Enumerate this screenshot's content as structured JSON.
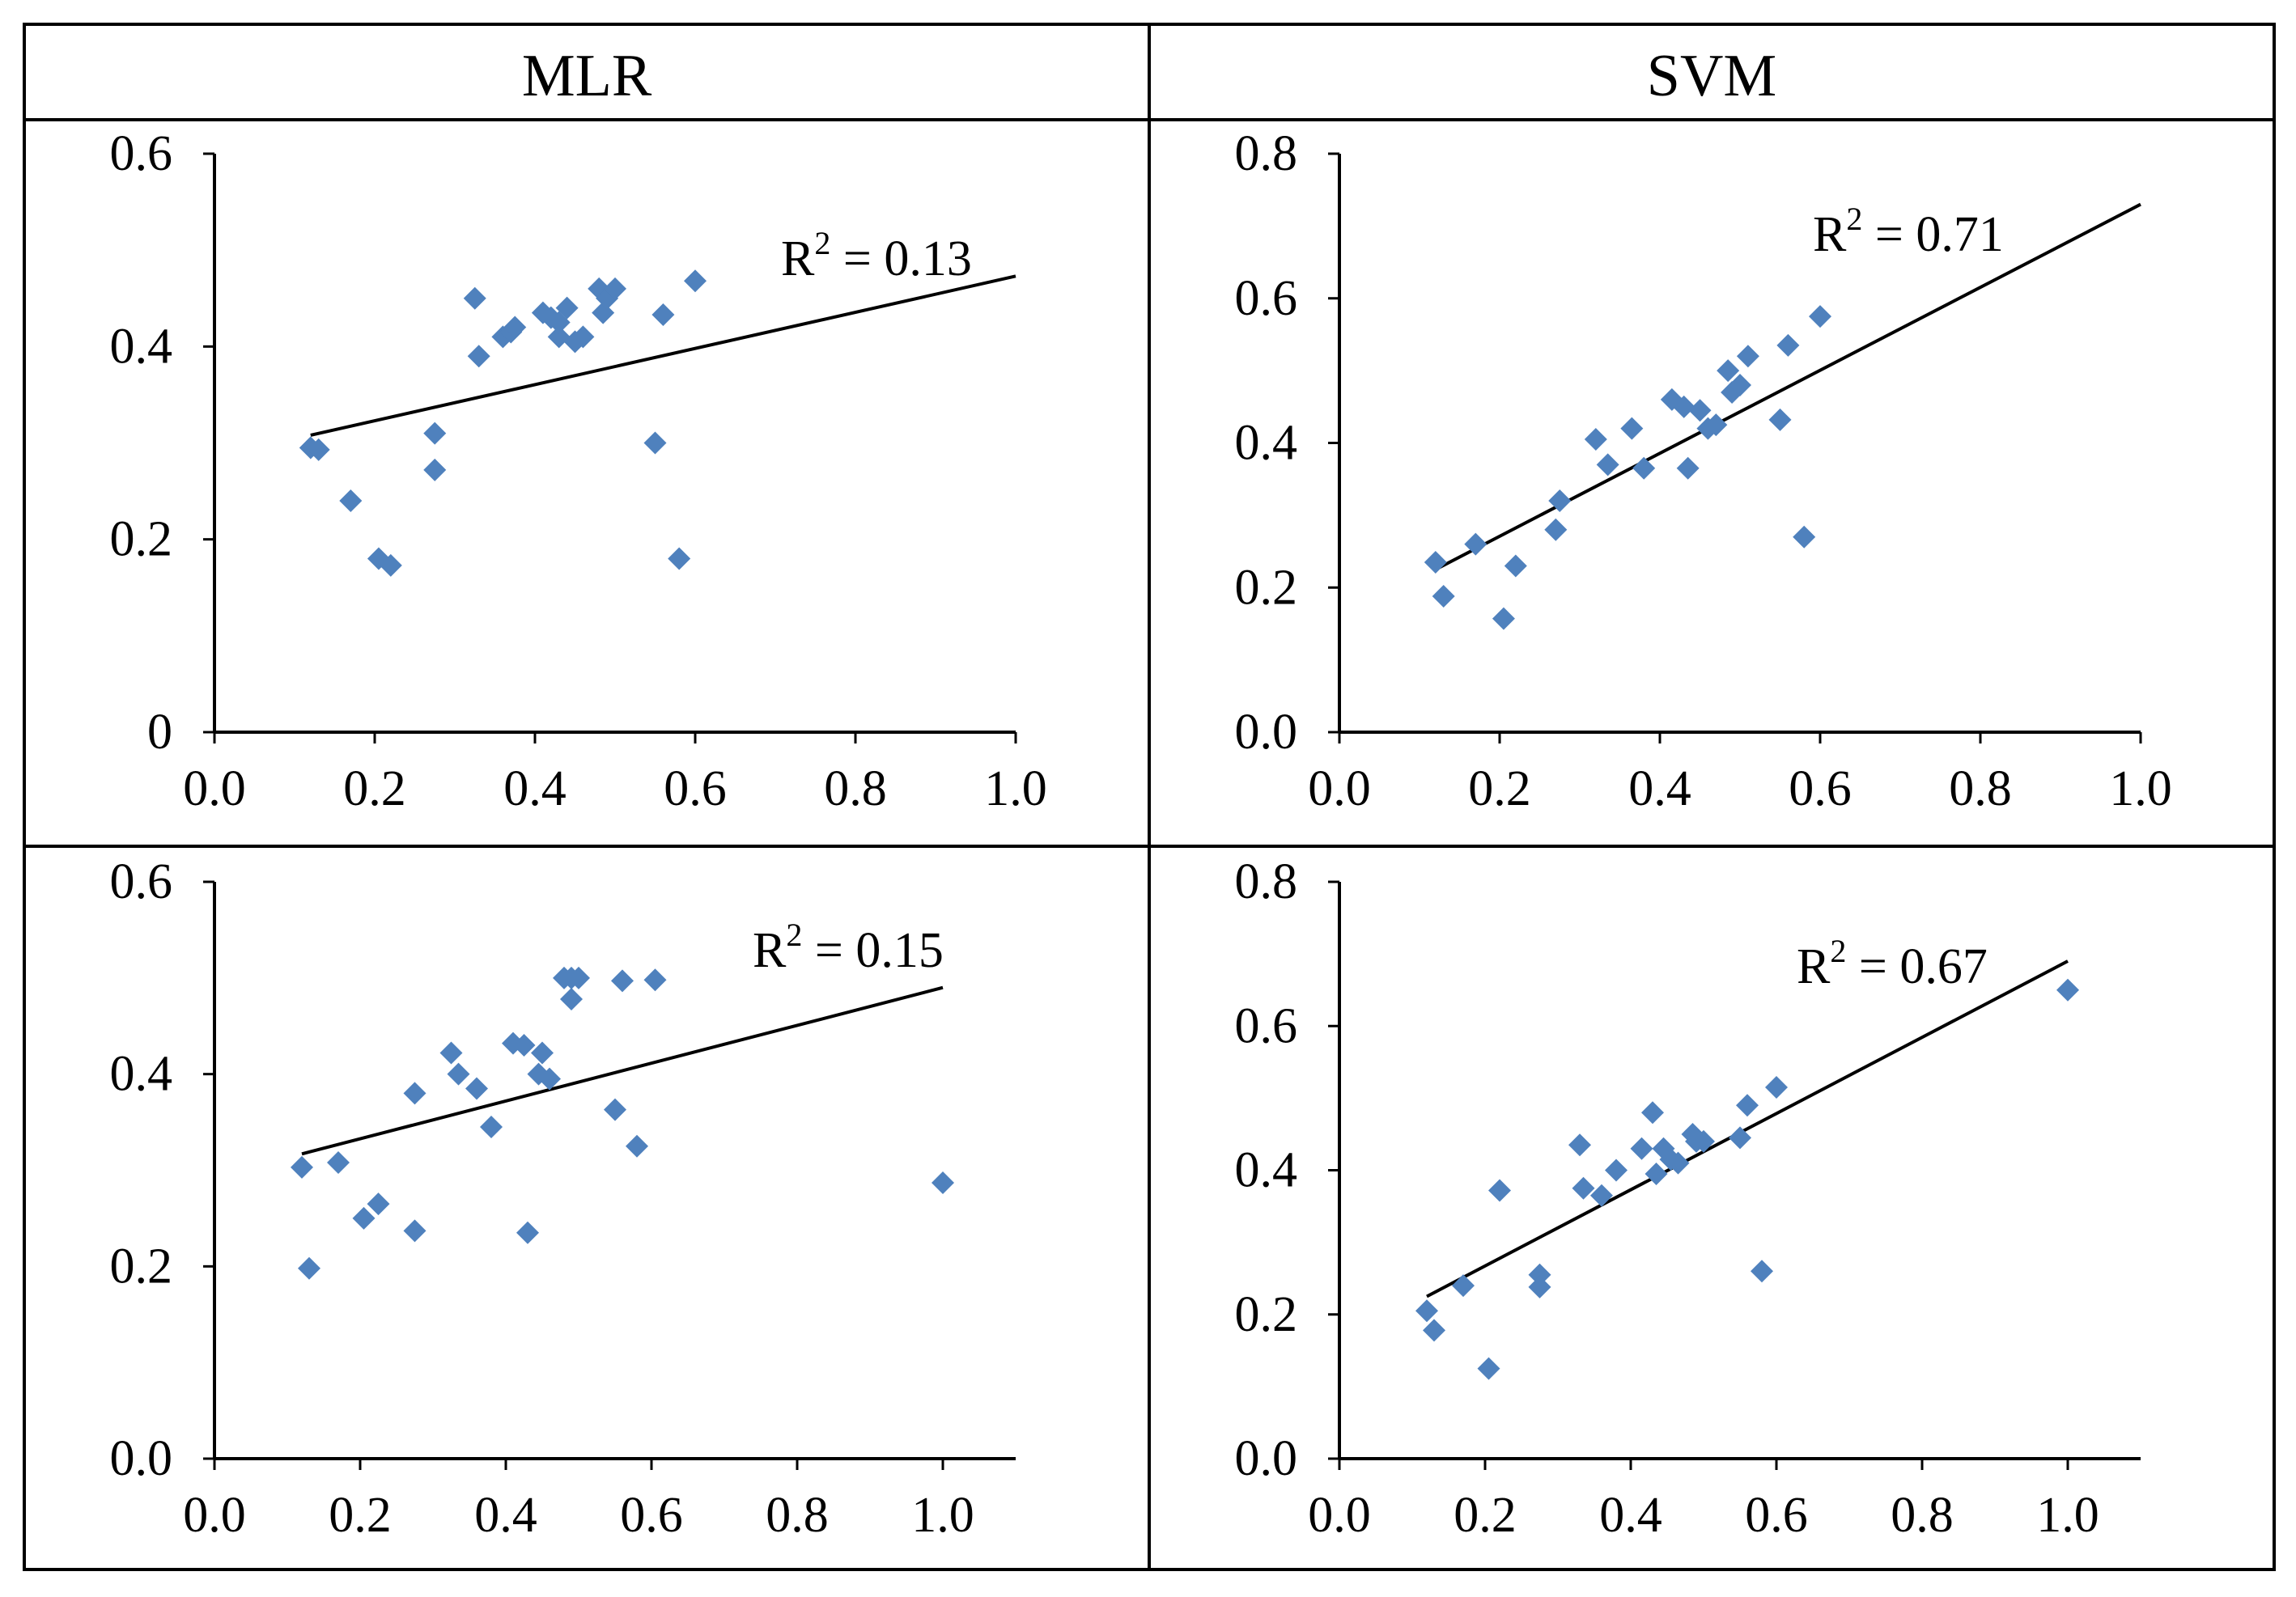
{
  "headers": {
    "left": "MLR",
    "right": "SVM"
  },
  "colors": {
    "marker": "#4f81bd",
    "line": "#000000",
    "frame": "#000000"
  },
  "chart_data": [
    {
      "type": "scatter",
      "panel": "top-left",
      "method": "MLR",
      "xlim": [
        0,
        1.0
      ],
      "ylim": [
        0,
        0.6
      ],
      "xticks": [
        "0.0",
        "0.2",
        "0.4",
        "0.6",
        "0.8",
        "1.0"
      ],
      "yticks": [
        "0",
        "0.2",
        "0.4",
        "0.6"
      ],
      "annotation": {
        "prefix": "R",
        "sup": "2",
        "text": " = 0.13"
      },
      "fit": {
        "x": [
          0.12,
          1.0
        ],
        "y": [
          0.308,
          0.473
        ]
      },
      "x": [
        0.12,
        0.13,
        0.17,
        0.205,
        0.22,
        0.275,
        0.275,
        0.325,
        0.33,
        0.36,
        0.37,
        0.375,
        0.41,
        0.42,
        0.43,
        0.43,
        0.44,
        0.45,
        0.46,
        0.48,
        0.485,
        0.49,
        0.5,
        0.55,
        0.56,
        0.58,
        0.6
      ],
      "y": [
        0.295,
        0.293,
        0.24,
        0.18,
        0.173,
        0.31,
        0.272,
        0.45,
        0.39,
        0.41,
        0.415,
        0.42,
        0.435,
        0.43,
        0.41,
        0.425,
        0.44,
        0.405,
        0.41,
        0.46,
        0.435,
        0.45,
        0.46,
        0.3,
        0.433,
        0.18,
        0.468
      ]
    },
    {
      "type": "scatter",
      "panel": "top-right",
      "method": "SVM",
      "xlim": [
        0,
        1.0
      ],
      "ylim": [
        0,
        0.8
      ],
      "xticks": [
        "0.0",
        "0.2",
        "0.4",
        "0.6",
        "0.8",
        "1.0"
      ],
      "yticks": [
        "0.0",
        "0.2",
        "0.4",
        "0.6",
        "0.8"
      ],
      "annotation": {
        "prefix": "R",
        "sup": "2",
        "text": " = 0.71"
      },
      "fit": {
        "x": [
          0.12,
          1.0
        ],
        "y": [
          0.225,
          0.73
        ]
      },
      "x": [
        0.12,
        0.13,
        0.17,
        0.205,
        0.22,
        0.27,
        0.275,
        0.32,
        0.335,
        0.365,
        0.38,
        0.415,
        0.43,
        0.435,
        0.45,
        0.46,
        0.47,
        0.485,
        0.49,
        0.5,
        0.51,
        0.55,
        0.56,
        0.58,
        0.6
      ],
      "y": [
        0.235,
        0.188,
        0.26,
        0.157,
        0.23,
        0.28,
        0.32,
        0.405,
        0.37,
        0.42,
        0.365,
        0.46,
        0.45,
        0.365,
        0.445,
        0.42,
        0.425,
        0.5,
        0.47,
        0.48,
        0.52,
        0.432,
        0.535,
        0.27,
        0.575
      ]
    },
    {
      "type": "scatter",
      "panel": "bottom-left",
      "method": "MLR",
      "xlim": [
        0,
        1.1
      ],
      "ylim": [
        0,
        0.6
      ],
      "xticks": [
        "0.0",
        "0.2",
        "0.4",
        "0.6",
        "0.8",
        "1.0"
      ],
      "yticks": [
        "0.0",
        "0.2",
        "0.4",
        "0.6"
      ],
      "annotation": {
        "prefix": "R",
        "sup": "2",
        "text": " = 0.15"
      },
      "fit": {
        "x": [
          0.12,
          1.0
        ],
        "y": [
          0.317,
          0.49
        ]
      },
      "x": [
        0.12,
        0.13,
        0.17,
        0.205,
        0.225,
        0.275,
        0.275,
        0.325,
        0.335,
        0.36,
        0.38,
        0.41,
        0.425,
        0.43,
        0.445,
        0.45,
        0.46,
        0.48,
        0.49,
        0.49,
        0.5,
        0.55,
        0.56,
        0.58,
        0.605,
        1.0
      ],
      "y": [
        0.303,
        0.198,
        0.308,
        0.25,
        0.265,
        0.237,
        0.38,
        0.422,
        0.4,
        0.385,
        0.345,
        0.432,
        0.43,
        0.235,
        0.4,
        0.422,
        0.395,
        0.5,
        0.5,
        0.478,
        0.5,
        0.363,
        0.497,
        0.325,
        0.498,
        0.287
      ]
    },
    {
      "type": "scatter",
      "panel": "bottom-right",
      "method": "SVM",
      "xlim": [
        0,
        1.1
      ],
      "ylim": [
        0,
        0.8
      ],
      "xticks": [
        "0.0",
        "0.2",
        "0.4",
        "0.6",
        "0.8",
        "1.0"
      ],
      "yticks": [
        "0.0",
        "0.2",
        "0.4",
        "0.6",
        "0.8"
      ],
      "annotation": {
        "prefix": "R",
        "sup": "2",
        "text": " = 0.67"
      },
      "fit": {
        "x": [
          0.12,
          1.0
        ],
        "y": [
          0.225,
          0.69
        ]
      },
      "x": [
        0.12,
        0.13,
        0.17,
        0.205,
        0.22,
        0.275,
        0.275,
        0.33,
        0.335,
        0.36,
        0.38,
        0.415,
        0.43,
        0.435,
        0.445,
        0.455,
        0.465,
        0.485,
        0.49,
        0.5,
        0.55,
        0.56,
        0.58,
        0.6,
        1.0
      ],
      "y": [
        0.205,
        0.178,
        0.24,
        0.125,
        0.372,
        0.255,
        0.238,
        0.435,
        0.375,
        0.365,
        0.4,
        0.43,
        0.48,
        0.395,
        0.43,
        0.415,
        0.41,
        0.45,
        0.44,
        0.44,
        0.445,
        0.49,
        0.26,
        0.515,
        0.65
      ]
    }
  ]
}
